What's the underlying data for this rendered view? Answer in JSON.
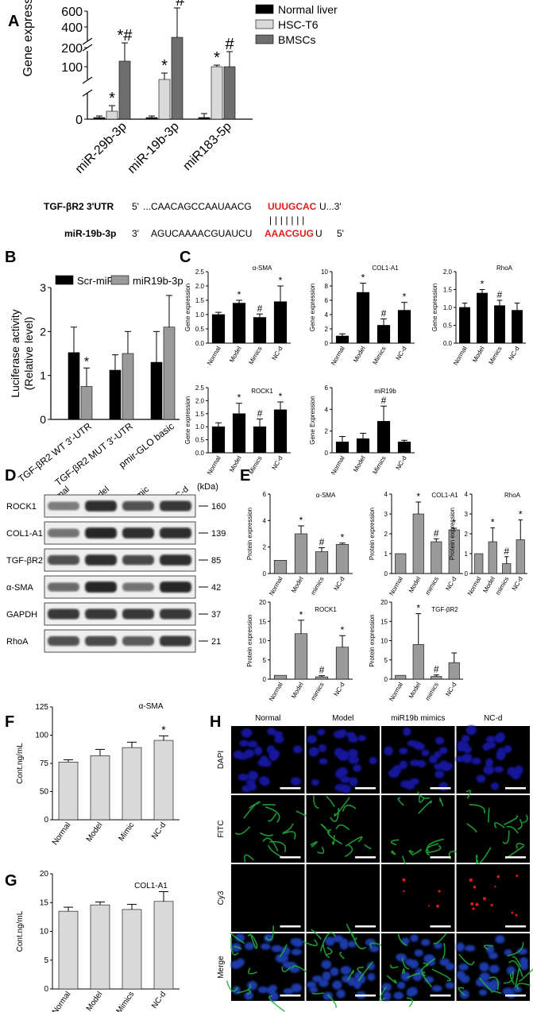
{
  "panel_letters": {
    "A": "A",
    "B": "B",
    "C": "C",
    "D": "D",
    "E": "E",
    "F": "F",
    "G": "G",
    "H": "H"
  },
  "seq": {
    "tgf_label": "TGF-βR2 3'UTR",
    "tgf_5": "5'",
    "tgf_pre": "...CAACAGCCAAUAACG",
    "tgf_site": "UUUGCAC",
    "tgf_post": "U...3'",
    "mir_label": "miR-19b-3p",
    "mir_3": "3'",
    "mir_pre": "AGUCAAAACGUAUCU",
    "mir_site": "AAACGUG",
    "mir_post": "U",
    "mir_5": "5'",
    "pairs": "| | | | | | |"
  },
  "colors": {
    "black": "#000000",
    "light": "#d9d9d9",
    "dark": "#6e6e6e",
    "mid": "#9a9a9a",
    "red": "#e21b1b",
    "dapi": "#0d0d8c",
    "fitc": "#1fa83a",
    "cy3": "#d81b1b"
  },
  "chart_data": [
    {
      "id": "A",
      "type": "bar",
      "ylabel": "Gene expression",
      "categories": [
        "miR-29b-3p",
        "miR-19b-3p",
        "miR183-5p"
      ],
      "series": [
        {
          "name": "Normal liver",
          "values": [
            1,
            1,
            1
          ],
          "err": [
            0.5,
            0.5,
            3
          ]
        },
        {
          "name": "HSC-T6",
          "values": [
            11,
            50,
            100
          ],
          "err": [
            6,
            8,
            4
          ]
        },
        {
          "name": "BMSCs",
          "values": [
            125,
            270,
            100
          ],
          "err": [
            35,
            170,
            60
          ]
        }
      ],
      "yticks": [
        "0",
        "100",
        "200",
        "400",
        "600"
      ],
      "marks": [
        [
          "",
          "*",
          ""
        ],
        [
          "",
          "*",
          ""
        ],
        [
          "",
          "*#",
          "*#"
        ]
      ],
      "marks_by_cat": [
        [
          "",
          "*",
          "*#"
        ],
        [
          "",
          "*",
          "*#"
        ],
        [
          "",
          "*",
          "#"
        ]
      ]
    },
    {
      "id": "B",
      "type": "bar",
      "ylabel": "Luciferase activity",
      "ylabel2": "(Relative level)",
      "categories": [
        "TGF-βR2 WT 3'-UTR",
        "TGF-βR2 MUT 3'-UTR",
        "pmir-GLO basic"
      ],
      "series": [
        {
          "name": "Scr-miR",
          "values": [
            1.52,
            1.12,
            1.3
          ],
          "err": [
            0.58,
            0.35,
            0.7
          ]
        },
        {
          "name": "miR19b-3p",
          "values": [
            0.75,
            1.5,
            2.1
          ],
          "err": [
            0.42,
            0.5,
            0.72
          ]
        }
      ],
      "ylim": [
        0,
        3
      ],
      "yticks": [
        "0",
        "1",
        "2",
        "3"
      ],
      "marks": [
        [
          "",
          "",
          ""
        ],
        [
          "*",
          "",
          ""
        ]
      ]
    },
    {
      "id": "C1",
      "type": "bar",
      "title": "α-SMA",
      "ylabel": "Gene expression",
      "categories": [
        "Normal",
        "Model",
        "Mimics",
        "NC-d"
      ],
      "values": [
        1.0,
        1.4,
        0.9,
        1.45
      ],
      "err": [
        0.08,
        0.1,
        0.12,
        0.55
      ],
      "marks": [
        "",
        "*",
        "#",
        "*"
      ],
      "ylim": [
        0,
        2.5
      ],
      "yticks": [
        "0.0",
        "0.5",
        "1.0",
        "1.5",
        "2.0",
        "2.5"
      ]
    },
    {
      "id": "C2",
      "type": "bar",
      "title": "COL1-A1",
      "ylabel": "Gene expression",
      "categories": [
        "Normal",
        "Model",
        "Mimics",
        "NC-d"
      ],
      "values": [
        1.0,
        7.1,
        2.5,
        4.6
      ],
      "err": [
        0.3,
        1.3,
        0.9,
        1.1
      ],
      "marks": [
        "",
        "*",
        "#",
        "*"
      ],
      "ylim": [
        0,
        10
      ],
      "yticks": [
        "0",
        "2",
        "4",
        "6",
        "8",
        "10"
      ]
    },
    {
      "id": "C3",
      "type": "bar",
      "title": "RhoA",
      "ylabel": "Gene expression",
      "categories": [
        "Normal",
        "Model",
        "Mimics",
        "NC-d"
      ],
      "values": [
        1.0,
        1.4,
        1.05,
        0.92
      ],
      "err": [
        0.12,
        0.1,
        0.15,
        0.2
      ],
      "marks": [
        "",
        "*",
        "#",
        ""
      ],
      "ylim": [
        0,
        2.0
      ],
      "yticks": [
        "0.0",
        "0.5",
        "1.0",
        "1.5",
        "2.0"
      ]
    },
    {
      "id": "C4",
      "type": "bar",
      "title": "ROCK1",
      "ylabel": "Gene expression",
      "categories": [
        "Normal",
        "Model",
        "Mimics",
        "NC-d"
      ],
      "values": [
        1.0,
        1.5,
        1.0,
        1.65
      ],
      "err": [
        0.15,
        0.4,
        0.3,
        0.3
      ],
      "marks": [
        "",
        "*",
        "#",
        "*"
      ],
      "ylim": [
        0,
        2.5
      ],
      "yticks": [
        "0.0",
        "0.5",
        "1.0",
        "1.5",
        "2.0",
        "2.5"
      ]
    },
    {
      "id": "C5",
      "type": "bar",
      "title": "miR19b",
      "ylabel": "Gene Expression",
      "categories": [
        "Normal",
        "Model",
        "Mimics",
        "NC-d"
      ],
      "values": [
        1.0,
        1.3,
        2.9,
        1.0
      ],
      "err": [
        0.5,
        0.5,
        1.4,
        0.15
      ],
      "marks": [
        "",
        "",
        "#",
        ""
      ],
      "ylim": [
        0,
        6
      ],
      "yticks": [
        "0",
        "2",
        "4",
        "6"
      ]
    },
    {
      "id": "E1",
      "type": "bar",
      "title": "α-SMA",
      "ylabel": "Protein expression",
      "categories": [
        "Normal",
        "Model",
        "mimics",
        "NC-d"
      ],
      "values": [
        1.0,
        3.0,
        1.65,
        2.2
      ],
      "err": [
        0,
        0.6,
        0.3,
        0.1
      ],
      "marks": [
        "",
        "*",
        "#",
        "*"
      ],
      "ylim": [
        0,
        6
      ],
      "yticks": [
        "0",
        "2",
        "4",
        "6"
      ]
    },
    {
      "id": "E2",
      "type": "bar",
      "title": "COL1-A1",
      "ylabel": "Protein expression",
      "categories": [
        "Normal",
        "Model",
        "mimics",
        "NC-d"
      ],
      "values": [
        1.0,
        3.0,
        1.6,
        2.2
      ],
      "err": [
        0,
        0.6,
        0.15,
        0.08
      ],
      "marks": [
        "",
        "*",
        "#",
        "*"
      ],
      "ylim": [
        0,
        4
      ],
      "yticks": [
        "0",
        "1",
        "2",
        "3",
        "4"
      ]
    },
    {
      "id": "E3",
      "type": "bar",
      "title": "RhoA",
      "ylabel": "Protein expression",
      "categories": [
        "Normal",
        "Model",
        "mimics",
        "NC-d"
      ],
      "values": [
        1.0,
        1.6,
        0.5,
        1.7
      ],
      "err": [
        0,
        0.7,
        0.35,
        1.0
      ],
      "marks": [
        "",
        "*",
        "#",
        "*"
      ],
      "ylim": [
        0,
        4
      ],
      "yticks": [
        "0",
        "1",
        "2",
        "3",
        "4"
      ]
    },
    {
      "id": "E4",
      "type": "bar",
      "title": "ROCK1",
      "ylabel": "Protein expression",
      "categories": [
        "Normal",
        "Model",
        "mimics",
        "NC-d"
      ],
      "values": [
        1.0,
        11.8,
        0.6,
        8.3
      ],
      "err": [
        0,
        3.5,
        0.3,
        3.0
      ],
      "marks": [
        "",
        "*",
        "#",
        "*"
      ],
      "ylim": [
        0,
        20
      ],
      "yticks": [
        "0",
        "5",
        "10",
        "15",
        "20"
      ]
    },
    {
      "id": "E5",
      "type": "bar",
      "title": "TGF-βR2",
      "ylabel": "Protein expression",
      "categories": [
        "Normal",
        "Model",
        "mimics",
        "NC-d"
      ],
      "values": [
        1.0,
        9.0,
        0.7,
        4.3
      ],
      "err": [
        0,
        8.0,
        0.4,
        2.5
      ],
      "marks": [
        "",
        "*",
        "#",
        ""
      ],
      "ylim": [
        0,
        20
      ],
      "yticks": [
        "0",
        "5",
        "10",
        "15",
        "20"
      ]
    },
    {
      "id": "F",
      "type": "bar",
      "title": "α-SMA",
      "ylabel": "Cont.ng/mL",
      "categories": [
        "Normal",
        "Model",
        "Mimic",
        "NC-d"
      ],
      "values": [
        64,
        71,
        80,
        88
      ],
      "err": [
        2.5,
        7,
        6,
        5
      ],
      "marks": [
        "",
        "",
        "",
        "*"
      ],
      "ylim": [
        0,
        125
      ],
      "yticks": [
        "0",
        "50",
        "75",
        "100",
        "125"
      ]
    },
    {
      "id": "G",
      "type": "bar",
      "title": "COL1-A1",
      "ylabel": "Cont.ng/mL",
      "categories": [
        "Normal",
        "Model",
        "Mimics",
        "NC-d"
      ],
      "values": [
        13.5,
        14.6,
        13.8,
        15.2
      ],
      "err": [
        0.7,
        0.5,
        0.9,
        1.7
      ],
      "marks": [
        "",
        "",
        "",
        ""
      ],
      "ylim": [
        0,
        20
      ],
      "yticks": [
        "0",
        "5",
        "10",
        "15",
        "20"
      ]
    }
  ],
  "western": {
    "lanes": [
      "Normal",
      "Model",
      "mimic",
      "NC-d"
    ],
    "kda_label": "(kDa)",
    "rows": [
      {
        "name": "ROCK1",
        "kda": "160",
        "intensity": [
          0.45,
          0.9,
          0.7,
          0.85
        ]
      },
      {
        "name": "COL1-A1",
        "kda": "139",
        "intensity": [
          0.5,
          0.95,
          0.9,
          0.9
        ]
      },
      {
        "name": "TGF-βR2",
        "kda": "85",
        "intensity": [
          0.7,
          0.9,
          0.75,
          0.9
        ]
      },
      {
        "name": "α-SMA",
        "kda": "42",
        "intensity": [
          0.55,
          0.95,
          0.5,
          0.95
        ]
      },
      {
        "name": "GAPDH",
        "kda": "37",
        "intensity": [
          0.85,
          0.85,
          0.85,
          0.85
        ]
      },
      {
        "name": "RhoA",
        "kda": "21",
        "intensity": [
          0.7,
          0.75,
          0.65,
          0.85
        ]
      }
    ]
  },
  "micro": {
    "columns": [
      "Normal",
      "Model",
      "miR19b mimics",
      "NC-d"
    ],
    "rows": [
      "DAPI",
      "FITC",
      "Cy3",
      "Merge"
    ]
  }
}
